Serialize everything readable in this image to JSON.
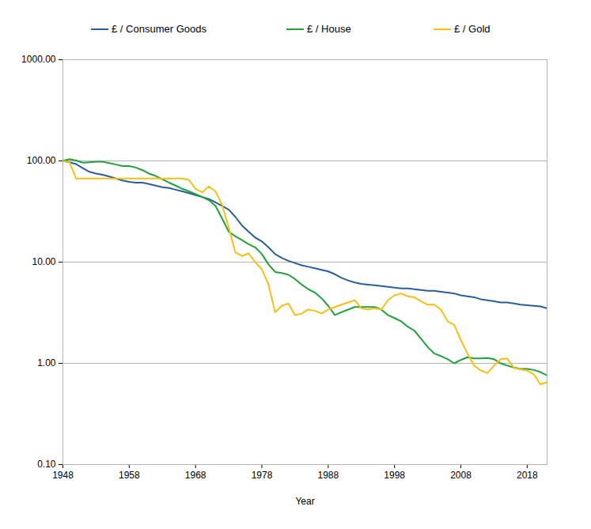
{
  "chart_data": {
    "type": "line",
    "x_label": "Year",
    "log": "y",
    "grid": true,
    "legend": "top",
    "x": [
      1948,
      1949,
      1950,
      1951,
      1952,
      1953,
      1954,
      1955,
      1956,
      1957,
      1958,
      1959,
      1960,
      1961,
      1962,
      1963,
      1964,
      1965,
      1966,
      1967,
      1968,
      1969,
      1970,
      1971,
      1972,
      1973,
      1974,
      1975,
      1976,
      1977,
      1978,
      1979,
      1980,
      1981,
      1982,
      1983,
      1984,
      1985,
      1986,
      1987,
      1988,
      1989,
      1990,
      1991,
      1992,
      1993,
      1994,
      1995,
      1996,
      1997,
      1998,
      1999,
      2000,
      2001,
      2002,
      2003,
      2004,
      2005,
      2006,
      2007,
      2008,
      2009,
      2010,
      2011,
      2012,
      2013,
      2014,
      2015,
      2016,
      2017,
      2018,
      2019,
      2020,
      2021
    ],
    "series": [
      {
        "name": "£ / Consumer Goods",
        "color": "#2a5d9c",
        "values": [
          100,
          97,
          93,
          85,
          78,
          75,
          73,
          70,
          67,
          64,
          62,
          61,
          61,
          59,
          57,
          55,
          54,
          52,
          50,
          48,
          46,
          44,
          42,
          39,
          36,
          33,
          28,
          23,
          20,
          17.5,
          16,
          14,
          12,
          11,
          10.3,
          9.8,
          9.3,
          9,
          8.7,
          8.4,
          8.1,
          7.6,
          7,
          6.6,
          6.3,
          6.1,
          6.0,
          5.9,
          5.8,
          5.7,
          5.6,
          5.5,
          5.5,
          5.4,
          5.3,
          5.2,
          5.2,
          5.1,
          5.0,
          4.9,
          4.7,
          4.6,
          4.5,
          4.3,
          4.2,
          4.1,
          4.0,
          4.0,
          3.9,
          3.8,
          3.75,
          3.7,
          3.65,
          3.5
        ]
      },
      {
        "name": "£ / House",
        "color": "#22a03c",
        "values": [
          100,
          104,
          101,
          96,
          97,
          98,
          98,
          95,
          92,
          89,
          89,
          86,
          81,
          75,
          71,
          66,
          61,
          57,
          53,
          50,
          47,
          44,
          41,
          36,
          27,
          20,
          18,
          16.5,
          15,
          14,
          12,
          9.5,
          8,
          7.8,
          7.5,
          6.8,
          6,
          5.4,
          5,
          4.4,
          3.7,
          3.0,
          3.2,
          3.4,
          3.6,
          3.6,
          3.6,
          3.6,
          3.4,
          3.0,
          2.8,
          2.6,
          2.3,
          2.1,
          1.75,
          1.45,
          1.25,
          1.18,
          1.1,
          1.0,
          1.08,
          1.15,
          1.12,
          1.12,
          1.13,
          1.1,
          1.0,
          0.95,
          0.91,
          0.88,
          0.88,
          0.86,
          0.82,
          0.76
        ]
      },
      {
        "name": "£ / Gold",
        "color": "#f5c013",
        "values": [
          100,
          97,
          67,
          67,
          67,
          67,
          67,
          67,
          67,
          67,
          67,
          67,
          67,
          67,
          67,
          67,
          67,
          67,
          67,
          65,
          53,
          49,
          56,
          50,
          37,
          22,
          12.5,
          11.5,
          12.2,
          10,
          8.5,
          6,
          3.2,
          3.7,
          3.9,
          3.0,
          3.1,
          3.4,
          3.3,
          3.1,
          3.4,
          3.6,
          3.8,
          4.0,
          4.2,
          3.5,
          3.4,
          3.5,
          3.4,
          4.2,
          4.7,
          4.9,
          4.6,
          4.5,
          4.1,
          3.8,
          3.8,
          3.4,
          2.6,
          2.4,
          1.7,
          1.25,
          0.95,
          0.85,
          0.8,
          0.95,
          1.1,
          1.12,
          0.9,
          0.87,
          0.85,
          0.78,
          0.62,
          0.65
        ]
      }
    ],
    "xlim": [
      1948,
      2021
    ],
    "xticks": [
      1948,
      1958,
      1968,
      1978,
      1988,
      1998,
      2008,
      2018
    ],
    "ylim": [
      0.1,
      1000
    ],
    "yticks": [
      {
        "value": 0.1,
        "label": "0.10"
      },
      {
        "value": 1,
        "label": "1.00"
      },
      {
        "value": 10,
        "label": "10.00"
      },
      {
        "value": 100,
        "label": "100.00"
      },
      {
        "value": 1000,
        "label": "1000.00"
      }
    ]
  }
}
